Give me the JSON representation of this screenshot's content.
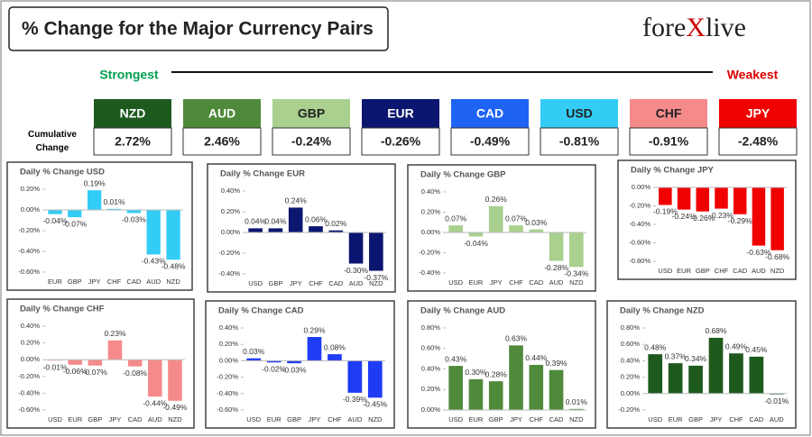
{
  "header": {
    "title": "% Change for the Major Currency Pairs",
    "logo": {
      "left": "fore",
      "mark": "X",
      "right": "live"
    },
    "strongest": "Strongest",
    "weakest": "Weakest",
    "cumulative_label": "Cumulative Change"
  },
  "cumulative": [
    {
      "currency": "NZD",
      "change": "2.72%",
      "color": "#1e5a1e"
    },
    {
      "currency": "AUD",
      "change": "2.46%",
      "color": "#4f8a3a"
    },
    {
      "currency": "GBP",
      "change": "-0.24%",
      "color": "#a9d08e"
    },
    {
      "currency": "EUR",
      "change": "-0.26%",
      "color": "#0b1670"
    },
    {
      "currency": "CAD",
      "change": "-0.49%",
      "color": "#1f63f5"
    },
    {
      "currency": "USD",
      "change": "-0.81%",
      "color": "#33ccf5"
    },
    {
      "currency": "CHF",
      "change": "-0.91%",
      "color": "#f58a8a"
    },
    {
      "currency": "JPY",
      "change": "-2.48%",
      "color": "#f00000"
    }
  ],
  "chart_data": [
    {
      "type": "bar",
      "title": "Daily % Change USD",
      "categories": [
        "EUR",
        "GBP",
        "JPY",
        "CHF",
        "CAD",
        "AUD",
        "NZD"
      ],
      "values": [
        -0.04,
        -0.07,
        0.19,
        0.01,
        -0.03,
        -0.43,
        -0.48
      ],
      "value_labels": [
        "-0.04%",
        "-0.07%",
        "0.19%",
        "0.01%",
        "-0.03%",
        "-0.43%",
        "-0.48%"
      ],
      "color": "#33ccf5",
      "ylim": [
        -0.6,
        0.2
      ],
      "yticks": [
        {
          "value": 0.2,
          "label": "0.20%"
        },
        {
          "value": 0,
          "label": "0.00%"
        },
        {
          "value": -0.2,
          "label": "-0.20%"
        },
        {
          "value": -0.4,
          "label": "-0.40%"
        },
        {
          "value": -0.6,
          "label": "-0.60%"
        }
      ]
    },
    {
      "type": "bar",
      "title": "Daily % Change EUR",
      "categories": [
        "USD",
        "GBP",
        "JPY",
        "CHF",
        "CAD",
        "AUD",
        "NZD"
      ],
      "values": [
        0.04,
        0.04,
        0.24,
        0.06,
        0.02,
        -0.3,
        -0.37
      ],
      "value_labels": [
        "0.04%",
        "0.04%",
        "0.24%",
        "0.06%",
        "0.02%",
        "-0.30%",
        "-0.37%"
      ],
      "color": "#0b1670",
      "ylim": [
        -0.4,
        0.4
      ],
      "yticks": [
        {
          "value": 0.4,
          "label": "0.40%"
        },
        {
          "value": 0.2,
          "label": "0.20%"
        },
        {
          "value": 0,
          "label": "0.00%"
        },
        {
          "value": -0.2,
          "label": "-0.20%"
        },
        {
          "value": -0.4,
          "label": "-0.40%"
        }
      ]
    },
    {
      "type": "bar",
      "title": "Daily % Change GBP",
      "categories": [
        "USD",
        "EUR",
        "JPY",
        "CHF",
        "CAD",
        "AUD",
        "NZD"
      ],
      "values": [
        0.07,
        -0.04,
        0.26,
        0.07,
        0.03,
        -0.28,
        -0.34
      ],
      "value_labels": [
        "0.07%",
        "-0.04%",
        "0.26%",
        "0.07%",
        "0.03%",
        "-0.28%",
        "-0.34%"
      ],
      "color": "#a9d08e",
      "ylim": [
        -0.4,
        0.4
      ],
      "yticks": [
        {
          "value": 0.4,
          "label": "0.40%"
        },
        {
          "value": 0.2,
          "label": "0.20%"
        },
        {
          "value": 0,
          "label": "0.00%"
        },
        {
          "value": -0.2,
          "label": "-0.20%"
        },
        {
          "value": -0.4,
          "label": "-0.40%"
        }
      ]
    },
    {
      "type": "bar",
      "title": "Daily % Change JPY",
      "categories": [
        "USD",
        "EUR",
        "GBP",
        "CHF",
        "CAD",
        "AUD",
        "NZD"
      ],
      "values": [
        -0.19,
        -0.24,
        -0.26,
        -0.23,
        -0.29,
        -0.63,
        -0.68
      ],
      "value_labels": [
        "-0.19%",
        "-0.24%",
        "-0.26%",
        "-0.23%",
        "-0.29%",
        "-0.63%",
        "-0.68%"
      ],
      "color": "#f00000",
      "ylim": [
        -0.8,
        0
      ],
      "yticks": [
        {
          "value": 0,
          "label": "0.00%"
        },
        {
          "value": -0.2,
          "label": "-0.20%"
        },
        {
          "value": -0.4,
          "label": "-0.40%"
        },
        {
          "value": -0.6,
          "label": "-0.60%"
        },
        {
          "value": -0.8,
          "label": "-0.80%"
        }
      ]
    },
    {
      "type": "bar",
      "title": "Daily % Change CHF",
      "categories": [
        "USD",
        "EUR",
        "GBP",
        "JPY",
        "CAD",
        "AUD",
        "NZD"
      ],
      "values": [
        -0.01,
        -0.06,
        -0.07,
        0.23,
        -0.08,
        -0.44,
        -0.49
      ],
      "value_labels": [
        "-0.01%",
        "-0.06%",
        "-0.07%",
        "0.23%",
        "-0.08%",
        "-0.44%",
        "-0.49%"
      ],
      "color": "#f58a8a",
      "ylim": [
        -0.6,
        0.4
      ],
      "yticks": [
        {
          "value": 0.4,
          "label": "0.40%"
        },
        {
          "value": 0.2,
          "label": "0.20%"
        },
        {
          "value": 0,
          "label": "0.00%"
        },
        {
          "value": -0.2,
          "label": "-0.20%"
        },
        {
          "value": -0.4,
          "label": "-0.40%"
        },
        {
          "value": -0.6,
          "label": "-0.60%"
        }
      ]
    },
    {
      "type": "bar",
      "title": "Daily % Change CAD",
      "categories": [
        "USD",
        "EUR",
        "GBP",
        "JPY",
        "CHF",
        "AUD",
        "NZD"
      ],
      "values": [
        0.03,
        -0.02,
        -0.03,
        0.29,
        0.08,
        -0.39,
        -0.45
      ],
      "value_labels": [
        "0.03%",
        "-0.02%",
        "-0.03%",
        "0.29%",
        "0.08%",
        "-0.39%",
        "-0.45%"
      ],
      "color": "#1f3cf5",
      "ylim": [
        -0.6,
        0.4
      ],
      "yticks": [
        {
          "value": 0.4,
          "label": "0.40%"
        },
        {
          "value": 0.2,
          "label": "0.20%"
        },
        {
          "value": 0,
          "label": "0.00%"
        },
        {
          "value": -0.2,
          "label": "-0.20%"
        },
        {
          "value": -0.4,
          "label": "-0.40%"
        },
        {
          "value": -0.6,
          "label": "-0.60%"
        }
      ]
    },
    {
      "type": "bar",
      "title": "Daily % Change AUD",
      "categories": [
        "USD",
        "EUR",
        "GBP",
        "JPY",
        "CHF",
        "CAD",
        "NZD"
      ],
      "values": [
        0.43,
        0.3,
        0.28,
        0.63,
        0.44,
        0.39,
        0.01
      ],
      "value_labels": [
        "0.43%",
        "0.30%",
        "0.28%",
        "0.63%",
        "0.44%",
        "0.39%",
        "0.01%"
      ],
      "color": "#4f8a3a",
      "ylim": [
        0,
        0.8
      ],
      "yticks": [
        {
          "value": 0.8,
          "label": "0.80%"
        },
        {
          "value": 0.6,
          "label": "0.60%"
        },
        {
          "value": 0.4,
          "label": "0.40%"
        },
        {
          "value": 0.2,
          "label": "0.20%"
        },
        {
          "value": 0,
          "label": "0.00%"
        }
      ]
    },
    {
      "type": "bar",
      "title": "Daily % Change NZD",
      "categories": [
        "USD",
        "EUR",
        "GBP",
        "JPY",
        "CHF",
        "CAD",
        "AUD"
      ],
      "values": [
        0.48,
        0.37,
        0.34,
        0.68,
        0.49,
        0.45,
        -0.01
      ],
      "value_labels": [
        "0.48%",
        "0.37%",
        "0.34%",
        "0.68%",
        "0.49%",
        "0.45%",
        "-0.01%"
      ],
      "color": "#1e5a1e",
      "ylim": [
        -0.2,
        0.8
      ],
      "yticks": [
        {
          "value": 0.8,
          "label": "0.80%"
        },
        {
          "value": 0.6,
          "label": "0.60%"
        },
        {
          "value": 0.4,
          "label": "0.40%"
        },
        {
          "value": 0.2,
          "label": "0.20%"
        },
        {
          "value": 0,
          "label": "0.00%"
        },
        {
          "value": -0.2,
          "label": "-0.20%"
        }
      ]
    }
  ]
}
